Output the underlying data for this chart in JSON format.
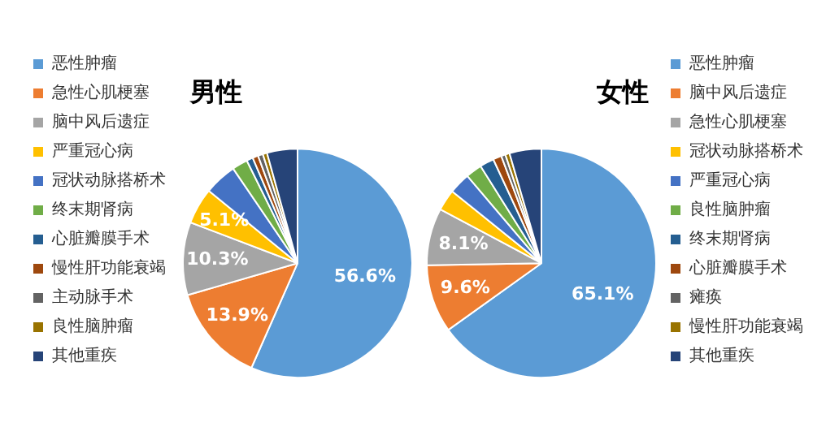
{
  "chart_data": [
    {
      "type": "pie",
      "title": "男性",
      "legend": "left",
      "categories": [
        "恶性肿瘤",
        "急性心肌梗塞",
        "脑中风后遗症",
        "严重冠心病",
        "冠状动脉搭桥术",
        "终末期肾病",
        "心脏瓣膜手术",
        "慢性肝功能衰竭",
        "主动脉手术",
        "良性脑肿瘤",
        "其他重疾"
      ],
      "values": [
        56.6,
        13.9,
        10.3,
        5.1,
        4.6,
        2.2,
        0.9,
        0.8,
        0.7,
        0.6,
        4.3
      ],
      "value_labels": [
        "56.6%",
        "13.9%",
        "10.3%",
        "5.1%",
        null,
        null,
        null,
        null,
        null,
        null,
        null
      ],
      "colors": [
        "#5b9bd5",
        "#ed7d31",
        "#a5a5a5",
        "#ffc000",
        "#4472c4",
        "#70ad47",
        "#255e91",
        "#9e480e",
        "#636363",
        "#997300",
        "#264478"
      ]
    },
    {
      "type": "pie",
      "title": "女性",
      "legend": "right",
      "categories": [
        "恶性肿瘤",
        "脑中风后遗症",
        "急性心肌梗塞",
        "冠状动脉搭桥术",
        "严重冠心病",
        "良性脑肿瘤",
        "终末期肾病",
        "心脏瓣膜手术",
        "瘫痪",
        "慢性肝功能衰竭",
        "其他重疾"
      ],
      "values": [
        65.1,
        9.6,
        8.1,
        3.0,
        3.0,
        2.3,
        2.0,
        1.2,
        0.6,
        0.6,
        4.5
      ],
      "value_labels": [
        "65.1%",
        "9.6%",
        "8.1%",
        null,
        null,
        null,
        null,
        null,
        null,
        null,
        null
      ],
      "colors": [
        "#5b9bd5",
        "#ed7d31",
        "#a5a5a5",
        "#ffc000",
        "#4472c4",
        "#70ad47",
        "#255e91",
        "#9e480e",
        "#636363",
        "#997300",
        "#264478"
      ]
    }
  ]
}
